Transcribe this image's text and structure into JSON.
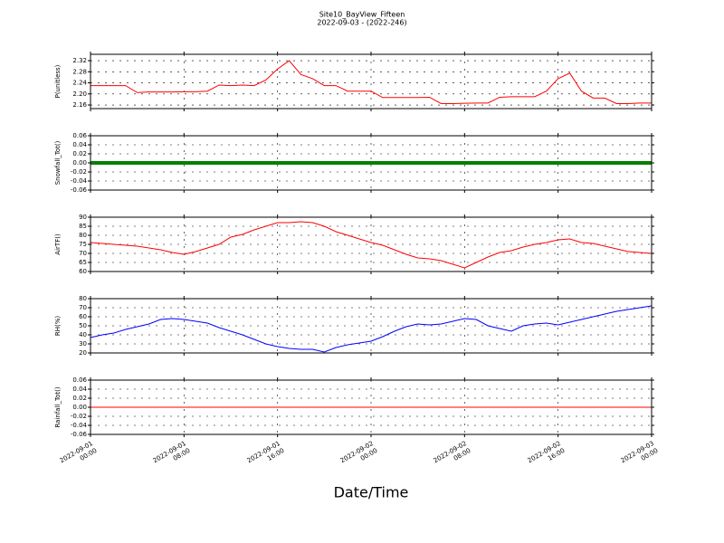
{
  "chart_data": [
    {
      "type": "line",
      "title": "Site10_BayView_Fifteen",
      "subtitle": "2022-09-03 - (2022-246)",
      "ylabel": "P(unitless)",
      "color": "#ff0000",
      "grid": true,
      "x": [
        0,
        1,
        2,
        3,
        4,
        5,
        6,
        7,
        8,
        9,
        10,
        11,
        12,
        13,
        14,
        15,
        16,
        17,
        18,
        19,
        20,
        21,
        22,
        23,
        24,
        25,
        26,
        27,
        28,
        29,
        30,
        31,
        32,
        33,
        34,
        35,
        36,
        37,
        38,
        39,
        40,
        41,
        42,
        43,
        44,
        45,
        46,
        47,
        48
      ],
      "values": [
        2.23,
        2.23,
        2.23,
        2.23,
        2.205,
        2.207,
        2.207,
        2.207,
        2.208,
        2.208,
        2.21,
        2.232,
        2.23,
        2.232,
        2.23,
        2.25,
        2.29,
        2.32,
        2.27,
        2.255,
        2.23,
        2.23,
        2.21,
        2.21,
        2.21,
        2.187,
        2.187,
        2.187,
        2.187,
        2.188,
        2.165,
        2.165,
        2.166,
        2.167,
        2.167,
        2.188,
        2.19,
        2.19,
        2.19,
        2.21,
        2.255,
        2.275,
        2.21,
        2.185,
        2.185,
        2.165,
        2.165,
        2.167,
        2.167
      ],
      "xlim": [
        0,
        48
      ],
      "xticks": [
        0,
        8,
        16,
        24,
        32,
        40,
        48
      ],
      "ylim": [
        2.147,
        2.343
      ],
      "yticks": [
        2.16,
        {
          "value": 2.2,
          "label": "2.20"
        },
        2.24,
        2.28,
        2.32
      ]
    },
    {
      "type": "line",
      "ylabel": "Snowfall_Tot()",
      "color": "#008000",
      "grid": true,
      "x": [
        0,
        1,
        2,
        3,
        4,
        5,
        6,
        7,
        8,
        9,
        10,
        11,
        12,
        13,
        14,
        15,
        16,
        17,
        18,
        19,
        20,
        21,
        22,
        23,
        24,
        25,
        26,
        27,
        28,
        29,
        30,
        31,
        32,
        33,
        34,
        35,
        36,
        37,
        38,
        39,
        40,
        41,
        42,
        43,
        44,
        45,
        46,
        47,
        48
      ],
      "values": [
        0,
        0,
        0,
        0,
        0,
        0,
        0,
        0,
        0,
        0,
        0,
        0,
        0,
        0,
        0,
        0,
        0,
        0,
        0,
        0,
        0,
        0,
        0,
        0,
        0,
        0,
        0,
        0,
        0,
        0,
        0,
        0,
        0,
        0,
        0,
        0,
        0,
        0,
        0,
        0,
        0,
        0,
        0,
        0,
        0,
        0,
        0,
        0,
        0
      ],
      "xlim": [
        0,
        48
      ],
      "xticks": [
        0,
        8,
        16,
        24,
        32,
        40,
        48
      ],
      "ylim": [
        -0.06,
        0.06
      ],
      "yticks": [
        -0.06,
        -0.04,
        -0.02,
        {
          "value": 0,
          "label": "0.00"
        },
        0.02,
        0.04,
        0.06
      ]
    },
    {
      "type": "line",
      "ylabel": "AirTF()",
      "color": "#ff0000",
      "grid": true,
      "x": [
        0,
        1,
        2,
        3,
        4,
        5,
        6,
        7,
        8,
        9,
        10,
        11,
        12,
        13,
        14,
        15,
        16,
        17,
        18,
        19,
        20,
        21,
        22,
        23,
        24,
        25,
        26,
        27,
        28,
        29,
        30,
        31,
        32,
        33,
        34,
        35,
        36,
        37,
        38,
        39,
        40,
        41,
        42,
        43,
        44,
        45,
        46,
        47,
        48
      ],
      "values": [
        76,
        75.5,
        75,
        74.5,
        74,
        73,
        72,
        70.5,
        69.5,
        71,
        73,
        75,
        79,
        80.5,
        83,
        85,
        87,
        87,
        87.5,
        87,
        85,
        82,
        80,
        78,
        76,
        74.5,
        72,
        69.5,
        67.5,
        67,
        66,
        64,
        62,
        65,
        68,
        70.5,
        71.5,
        73.5,
        75,
        76,
        77.5,
        78,
        76,
        75.5,
        74,
        72.5,
        71,
        70.5,
        70
      ],
      "xlim": [
        0,
        48
      ],
      "xticks": [
        0,
        8,
        16,
        24,
        32,
        40,
        48
      ],
      "ylim": [
        60,
        90
      ],
      "yticks": [
        60,
        65,
        70,
        75,
        80,
        85,
        90
      ]
    },
    {
      "type": "line",
      "ylabel": "RH(%)",
      "color": "#0000ff",
      "grid": true,
      "x": [
        0,
        1,
        2,
        3,
        4,
        5,
        6,
        7,
        8,
        9,
        10,
        11,
        12,
        13,
        14,
        15,
        16,
        17,
        18,
        19,
        20,
        21,
        22,
        23,
        24,
        25,
        26,
        27,
        28,
        29,
        30,
        31,
        32,
        33,
        34,
        35,
        36,
        37,
        38,
        39,
        40,
        41,
        42,
        43,
        44,
        45,
        46,
        47,
        48
      ],
      "values": [
        37,
        40,
        42,
        46,
        49,
        52,
        57,
        58,
        57,
        55,
        53,
        48,
        44,
        40,
        35,
        30,
        27,
        25,
        24,
        24,
        21,
        26,
        29,
        31,
        33,
        38,
        44,
        49,
        52,
        51,
        52,
        55,
        58,
        57,
        50,
        47,
        44,
        50,
        52,
        53,
        51,
        54,
        57,
        60,
        63,
        66,
        68,
        70,
        72
      ],
      "xlim": [
        0,
        48
      ],
      "xticks": [
        0,
        8,
        16,
        24,
        32,
        40,
        48
      ],
      "ylim": [
        20,
        80
      ],
      "yticks": [
        20,
        30,
        40,
        50,
        60,
        70,
        80
      ]
    },
    {
      "type": "line",
      "ylabel": "Rainfall_Tot()",
      "xlabel": "Date/Time",
      "color": "#ff0000",
      "grid": true,
      "x": [
        0,
        1,
        2,
        3,
        4,
        5,
        6,
        7,
        8,
        9,
        10,
        11,
        12,
        13,
        14,
        15,
        16,
        17,
        18,
        19,
        20,
        21,
        22,
        23,
        24,
        25,
        26,
        27,
        28,
        29,
        30,
        31,
        32,
        33,
        34,
        35,
        36,
        37,
        38,
        39,
        40,
        41,
        42,
        43,
        44,
        45,
        46,
        47,
        48
      ],
      "values": [
        0,
        0,
        0,
        0,
        0,
        0,
        0,
        0,
        0,
        0,
        0,
        0,
        0,
        0,
        0,
        0,
        0,
        0,
        0,
        0,
        0,
        0,
        0,
        0,
        0,
        0,
        0,
        0,
        0,
        0,
        0,
        0,
        0,
        0,
        0,
        0,
        0,
        0,
        0,
        0,
        0,
        0,
        0,
        0,
        0,
        0,
        0,
        0,
        0
      ],
      "xlim": [
        0,
        48
      ],
      "xticks": [
        {
          "value": 0,
          "label": "2022-09-01\n00:00"
        },
        {
          "value": 8,
          "label": "2022-09-01\n08:00"
        },
        {
          "value": 16,
          "label": "2022-09-01\n16:00"
        },
        {
          "value": 24,
          "label": "2022-09-02\n00:00"
        },
        {
          "value": 32,
          "label": "2022-09-02\n08:00"
        },
        {
          "value": 40,
          "label": "2022-09-02\n16:00"
        },
        {
          "value": 48,
          "label": "2022-09-03\n00:00"
        }
      ],
      "ylim": [
        -0.06,
        0.06
      ],
      "yticks": [
        -0.06,
        -0.04,
        -0.02,
        {
          "value": 0,
          "label": "0.00"
        },
        0.02,
        0.04,
        0.06
      ]
    }
  ]
}
